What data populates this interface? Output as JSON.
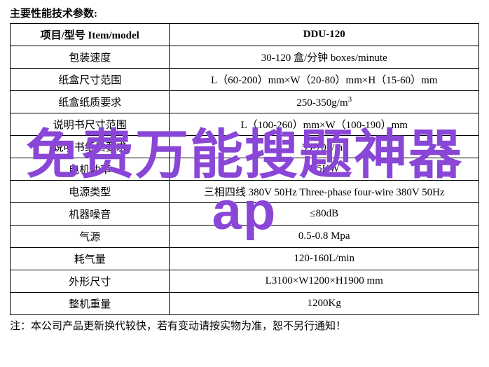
{
  "heading": "主要性能技术参数:",
  "table": {
    "header": {
      "left": "项目/型号 Item/model",
      "right": "DDU-120"
    },
    "rows": [
      {
        "label": "包装速度",
        "value": "30-120 盒/分钟 boxes/minute"
      },
      {
        "label": "纸盒尺寸范围",
        "value": "L（60-200）mm×W（20-80）mm×H（15-60）mm"
      },
      {
        "label": "纸盒纸质要求",
        "value": "250-350g/m",
        "value_sup": "3"
      },
      {
        "label": "说明书尺寸范围",
        "value": "L（100-260）mm×W（100-190）mm"
      },
      {
        "label": "说明书纸质要求",
        "value": "55-70g/m",
        "value_sup": "2"
      },
      {
        "label": "电机功率",
        "value": "1.5KW"
      },
      {
        "label": "电源类型",
        "value": "三相四线 380V 50Hz Three-phase four-wire 380V 50Hz"
      },
      {
        "label": "机器噪音",
        "value": "≤80dB"
      },
      {
        "label": "气源",
        "value": "0.5-0.8 Mpa"
      },
      {
        "label": "耗气量",
        "value": "120-160L/min"
      },
      {
        "label": "外形尺寸",
        "value": "L3100×W1200×H1900 mm"
      },
      {
        "label": "整机重量",
        "value": "1200Kg"
      }
    ]
  },
  "footnote": "注：本公司产品更新换代较快，若有变动请按实物为准，恕不另行通知！",
  "watermark": {
    "line1": "免费万能搜题神器",
    "line2": "ap"
  },
  "colors": {
    "text": "#000000",
    "border": "#000000",
    "background": "#ffffff",
    "watermark": "#8a46d6"
  }
}
